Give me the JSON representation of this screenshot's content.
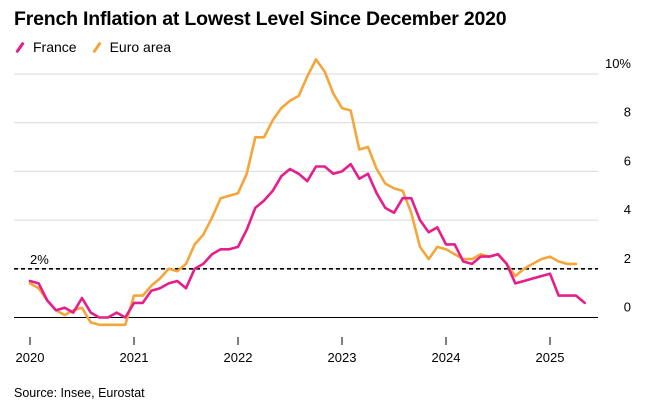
{
  "title": "French Inflation at Lowest Level Since December 2020",
  "source": "Source: Insee, Eurostat",
  "colors": {
    "france": "#e61e8c",
    "euro_area": "#f5a53a",
    "grid": "#d9d9d9",
    "axis": "#000000"
  },
  "legend": [
    {
      "label": "France",
      "color": "#e61e8c"
    },
    {
      "label": "Euro area",
      "color": "#f5a53a"
    }
  ],
  "reference_label": "2%",
  "chart_data": {
    "type": "line",
    "title": "French Inflation at Lowest Level Since December 2020",
    "ylim": [
      -0.6,
      10.6
    ],
    "xlim": [
      2020.0,
      2025.6
    ],
    "y_ticks": [
      0,
      2,
      4,
      6,
      8,
      10
    ],
    "y_tick_labels": [
      "0",
      "2",
      "4",
      "6",
      "8",
      "10%"
    ],
    "x_ticks": [
      2020,
      2021,
      2022,
      2023,
      2024,
      2025
    ],
    "x_tick_labels": [
      "2020",
      "2021",
      "2022",
      "2023",
      "2024",
      "2025"
    ],
    "grid": true,
    "legend_position": "top-left",
    "reference_line": {
      "y": 2,
      "label": "2%",
      "style": "dashed"
    },
    "series": [
      {
        "name": "France",
        "color": "#e61e8c",
        "x_start": 2020.0,
        "x_step": 0.0833333,
        "values": [
          1.5,
          1.4,
          0.7,
          0.3,
          0.4,
          0.2,
          0.8,
          0.2,
          0.0,
          0.0,
          0.2,
          0.0,
          0.6,
          0.6,
          1.1,
          1.2,
          1.4,
          1.5,
          1.2,
          2.0,
          2.2,
          2.6,
          2.8,
          2.8,
          2.9,
          3.6,
          4.5,
          4.8,
          5.2,
          5.8,
          6.1,
          5.9,
          5.6,
          6.2,
          6.2,
          5.9,
          6.0,
          6.3,
          5.7,
          5.9,
          5.1,
          4.5,
          4.3,
          4.9,
          4.9,
          4.0,
          3.5,
          3.7,
          3.0,
          3.0,
          2.3,
          2.2,
          2.5,
          2.5,
          2.6,
          2.2,
          1.4,
          1.5,
          1.6,
          1.7,
          1.8,
          0.9,
          0.9,
          0.9,
          0.6
        ]
      },
      {
        "name": "Euro area",
        "color": "#f5a53a",
        "x_start": 2020.0,
        "x_step": 0.0833333,
        "values": [
          1.4,
          1.2,
          0.7,
          0.3,
          0.1,
          0.3,
          0.4,
          -0.2,
          -0.3,
          -0.3,
          -0.3,
          -0.3,
          0.9,
          0.9,
          1.3,
          1.6,
          2.0,
          1.9,
          2.2,
          3.0,
          3.4,
          4.1,
          4.9,
          5.0,
          5.1,
          5.9,
          7.4,
          7.4,
          8.1,
          8.6,
          8.9,
          9.1,
          9.9,
          10.6,
          10.1,
          9.2,
          8.6,
          8.5,
          6.9,
          7.0,
          6.1,
          5.5,
          5.3,
          5.2,
          4.3,
          2.9,
          2.4,
          2.9,
          2.8,
          2.6,
          2.4,
          2.4,
          2.6,
          2.5,
          2.6,
          2.2,
          1.7,
          2.0,
          2.2,
          2.4,
          2.5,
          2.3,
          2.2,
          2.2
        ]
      }
    ]
  }
}
